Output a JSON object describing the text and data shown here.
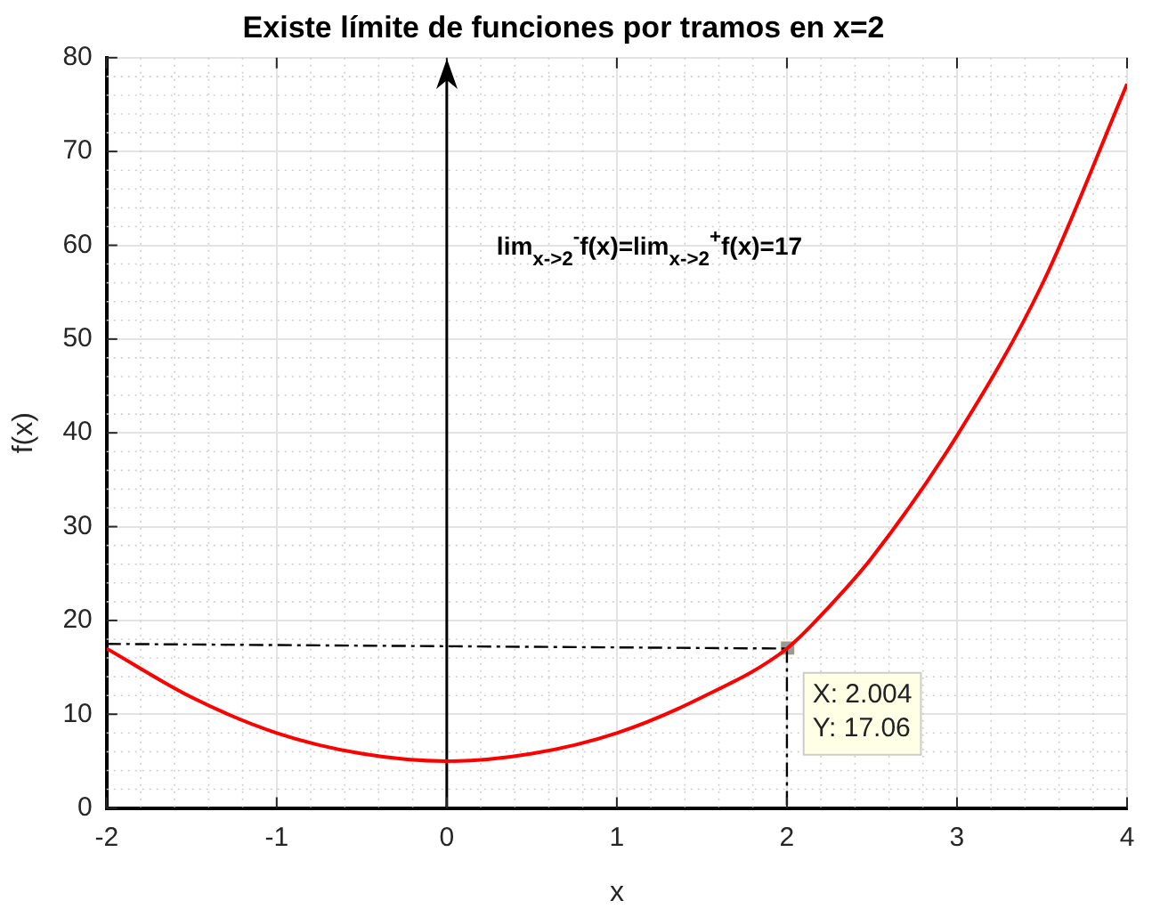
{
  "chart_data": {
    "type": "line",
    "title": "Existe límite de funciones por tramos en x=2",
    "xlabel": "x",
    "ylabel": "f(x)",
    "xlim": [
      -2,
      4
    ],
    "xticks": [
      -2,
      -1,
      0,
      1,
      2,
      3,
      4
    ],
    "ylim": [
      0,
      80
    ],
    "yticks": [
      0,
      10,
      20,
      30,
      40,
      50,
      60,
      70,
      80
    ],
    "grid": true,
    "legend": false,
    "series": [
      {
        "type": "line",
        "color": "#ff0000",
        "x": [
          -2,
          -1.5,
          -1,
          -0.5,
          0,
          0.5,
          1,
          1.5,
          2,
          2.25,
          2.5,
          3,
          3.5,
          4
        ],
        "values": [
          17,
          11.8,
          8,
          5.8,
          5,
          5.8,
          8,
          11.8,
          17,
          21.5,
          26.7,
          39.7,
          55.8,
          77.2
        ]
      },
      {
        "type": "line",
        "color": "#000000",
        "line_style": "dashed",
        "x": [
          -2,
          2
        ],
        "values": [
          17.5,
          17
        ]
      },
      {
        "type": "line",
        "color": "#000000",
        "line_style": "dashed",
        "x": [
          2,
          2
        ],
        "values": [
          17,
          0
        ]
      },
      {
        "type": "scatter",
        "marker": "square",
        "color": "#999999",
        "x": [
          2.004
        ],
        "values": [
          17.06
        ]
      }
    ],
    "ref_lines": [
      {
        "axis": "x",
        "value": 0,
        "color": "#000000"
      }
    ],
    "annotations": [
      "lim$_{x->2}$$^{-}$f(x)=lim$_{x->2}$$^{+}$f(x)=17",
      {
        "text": "X: 2.004\nY: 17.06",
        "x": 2.004,
        "y": 17.06
      }
    ]
  }
}
